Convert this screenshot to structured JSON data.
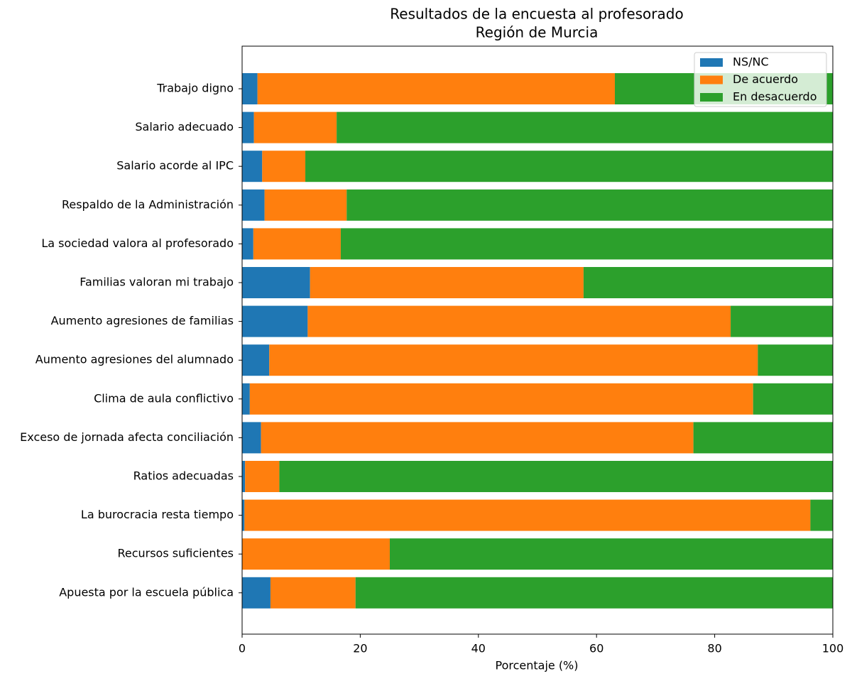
{
  "chart_data": {
    "type": "stacked-barh",
    "title": "Resultados de la encuesta al profesorado",
    "subtitle": "Región de Murcia",
    "xlabel": "Porcentaje (%)",
    "categories": [
      "Trabajo digno",
      "Salario adecuado",
      "Salario acorde al IPC",
      "Respaldo de la Administración",
      "La sociedad valora al profesorado",
      "Familias valoran mi trabajo",
      "Aumento agresiones de familias",
      "Aumento agresiones del alumnado",
      "Clima de aula conflictivo",
      "Exceso de jornada afecta conciliación",
      "Ratios adecuadas",
      "La burocracia resta tiempo",
      "Recursos suficientes",
      "Apuesta por la escuela pública"
    ],
    "series": [
      {
        "name": "NS/NC",
        "color": "#1f77b4",
        "values": [
          2.6,
          2.0,
          3.4,
          3.8,
          1.9,
          11.5,
          11.1,
          4.6,
          1.3,
          3.2,
          0.5,
          0.4,
          0,
          4.8
        ]
      },
      {
        "name": "De acuerdo",
        "color": "#ff7f0e",
        "values": [
          60.5,
          14.0,
          7.3,
          13.9,
          14.8,
          46.3,
          71.6,
          82.7,
          85.2,
          73.2,
          5.8,
          95.8,
          25.0,
          14.4
        ]
      },
      {
        "name": "En desacuerdo",
        "color": "#2ca02c",
        "values": [
          36.9,
          84.0,
          89.3,
          82.3,
          83.3,
          42.2,
          17.3,
          12.7,
          13.5,
          23.6,
          93.7,
          3.8,
          75.0,
          80.8
        ]
      }
    ],
    "xlim": [
      0,
      100
    ],
    "xticks": [
      0,
      20,
      40,
      60,
      80,
      100
    ],
    "legend": "upper right"
  }
}
